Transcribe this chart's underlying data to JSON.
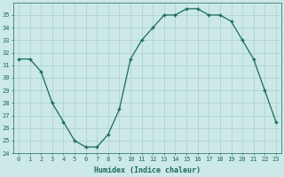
{
  "x": [
    0,
    1,
    2,
    3,
    4,
    5,
    6,
    7,
    8,
    9,
    10,
    11,
    12,
    13,
    14,
    15,
    16,
    17,
    18,
    19,
    20,
    21,
    22,
    23
  ],
  "y": [
    31.5,
    31.5,
    30.5,
    28.0,
    26.5,
    25.0,
    24.5,
    24.5,
    25.5,
    27.5,
    31.5,
    33.0,
    34.0,
    35.0,
    35.0,
    35.5,
    35.5,
    35.0,
    35.0,
    34.5,
    33.0,
    31.5,
    29.0,
    26.5
  ],
  "xlabel": "Humidex (Indice chaleur)",
  "ylim_min": 24,
  "ylim_max": 36,
  "xlim_min": -0.5,
  "xlim_max": 23.5,
  "yticks": [
    24,
    25,
    26,
    27,
    28,
    29,
    30,
    31,
    32,
    33,
    34,
    35
  ],
  "xticks": [
    0,
    1,
    2,
    3,
    4,
    5,
    6,
    7,
    8,
    9,
    10,
    11,
    12,
    13,
    14,
    15,
    16,
    17,
    18,
    19,
    20,
    21,
    22,
    23
  ],
  "line_color": "#1a6b5a",
  "marker_color": "#1a6b5a",
  "bg_color": "#cce8e8",
  "grid_color": "#aacfcf",
  "font_color": "#1a6b5a",
  "tick_font_size": 5.0,
  "xlabel_font_size": 6.0
}
